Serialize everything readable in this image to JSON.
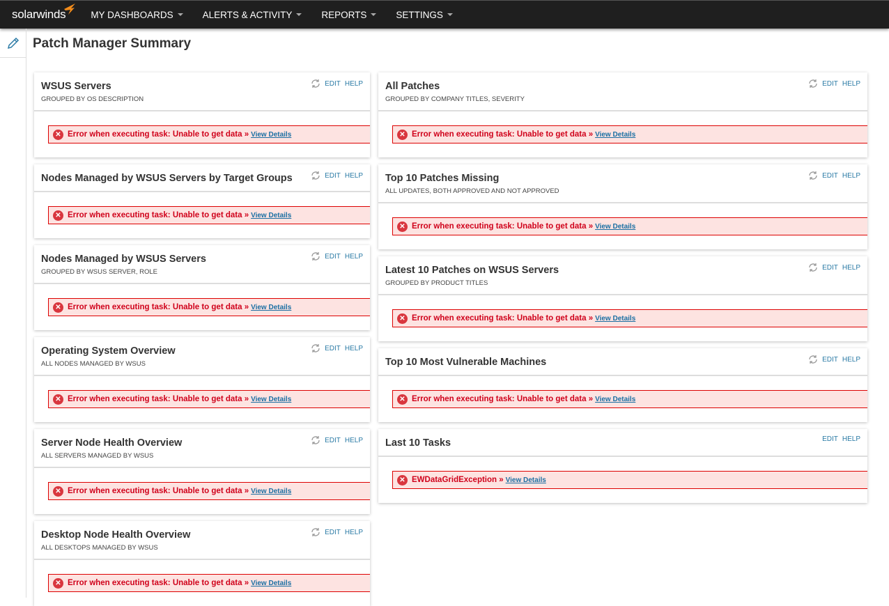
{
  "header": {
    "logo": "solarwinds",
    "nav": [
      "MY DASHBOARDS",
      "ALERTS & ACTIVITY",
      "REPORTS",
      "SETTINGS"
    ]
  },
  "page_title": "Patch Manager Summary",
  "common": {
    "edit": "EDIT",
    "help": "HELP",
    "view_details": "View Details",
    "error": "Error when executing task: Unable to get data »"
  },
  "left": [
    {
      "title": "WSUS Servers",
      "sub": "GROUPED BY OS DESCRIPTION"
    },
    {
      "title": "Nodes Managed by WSUS Servers by Target Groups",
      "sub": ""
    },
    {
      "title": "Nodes Managed by WSUS Servers",
      "sub": "GROUPED BY WSUS SERVER, ROLE"
    },
    {
      "title": "Operating System Overview",
      "sub": "ALL NODES MANAGED BY WSUS"
    },
    {
      "title": "Server Node Health Overview",
      "sub": "ALL SERVERS MANAGED BY WSUS"
    },
    {
      "title": "Desktop Node Health Overview",
      "sub": "ALL DESKTOPS MANAGED BY WSUS"
    }
  ],
  "right": [
    {
      "title": "All Patches",
      "sub": "GROUPED BY COMPANY TITLES, SEVERITY"
    },
    {
      "title": "Top 10 Patches Missing",
      "sub": "ALL UPDATES, BOTH APPROVED AND NOT APPROVED"
    },
    {
      "title": "Latest 10 Patches on WSUS Servers",
      "sub": "GROUPED BY PRODUCT TITLES"
    },
    {
      "title": "Top 10 Most Vulnerable Machines",
      "sub": ""
    },
    {
      "title": "Last 10 Tasks",
      "sub": "",
      "error": "EWDataGridException »",
      "norefresh": true
    }
  ]
}
